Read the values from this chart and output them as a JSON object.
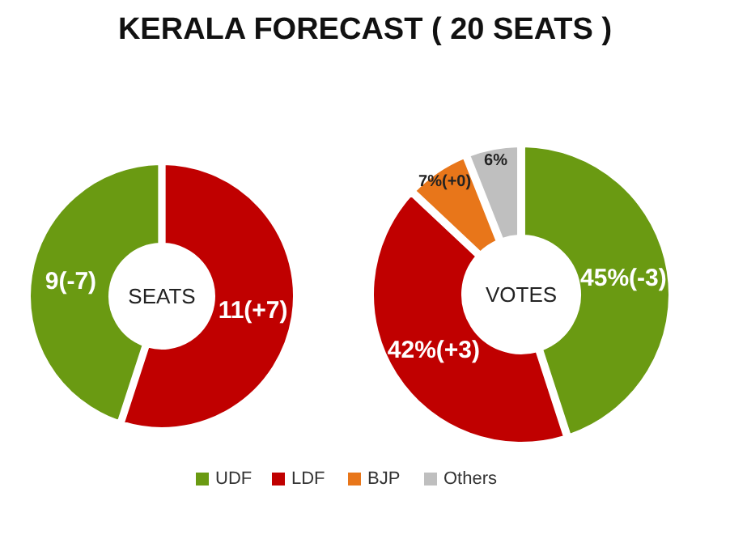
{
  "chart_data": [
    {
      "type": "donut",
      "title": "KERALA FORECAST ( 20 SEATS )",
      "categories": [
        null,
        null
      ],
      "values": [
        9,
        11
      ],
      "colors": [
        "#6a9a12",
        "#c00000"
      ],
      "value_labels": [
        "9(-7)",
        "11(+7)"
      ],
      "annotations": [
        "SEATS"
      ]
    },
    {
      "type": "donut",
      "categories": [
        "UDF",
        "LDF",
        "BJP",
        "Others"
      ],
      "values": [
        45,
        42,
        7,
        6
      ],
      "colors": [
        "#6a9a12",
        "#c00000",
        "#e8761a",
        "#bfbfbf"
      ],
      "value_labels": [
        "45%(-3)",
        "42%(+3)",
        "7%(+0)",
        "6%"
      ],
      "annotations": [
        "VOTES"
      ],
      "legend": "bottom"
    }
  ]
}
